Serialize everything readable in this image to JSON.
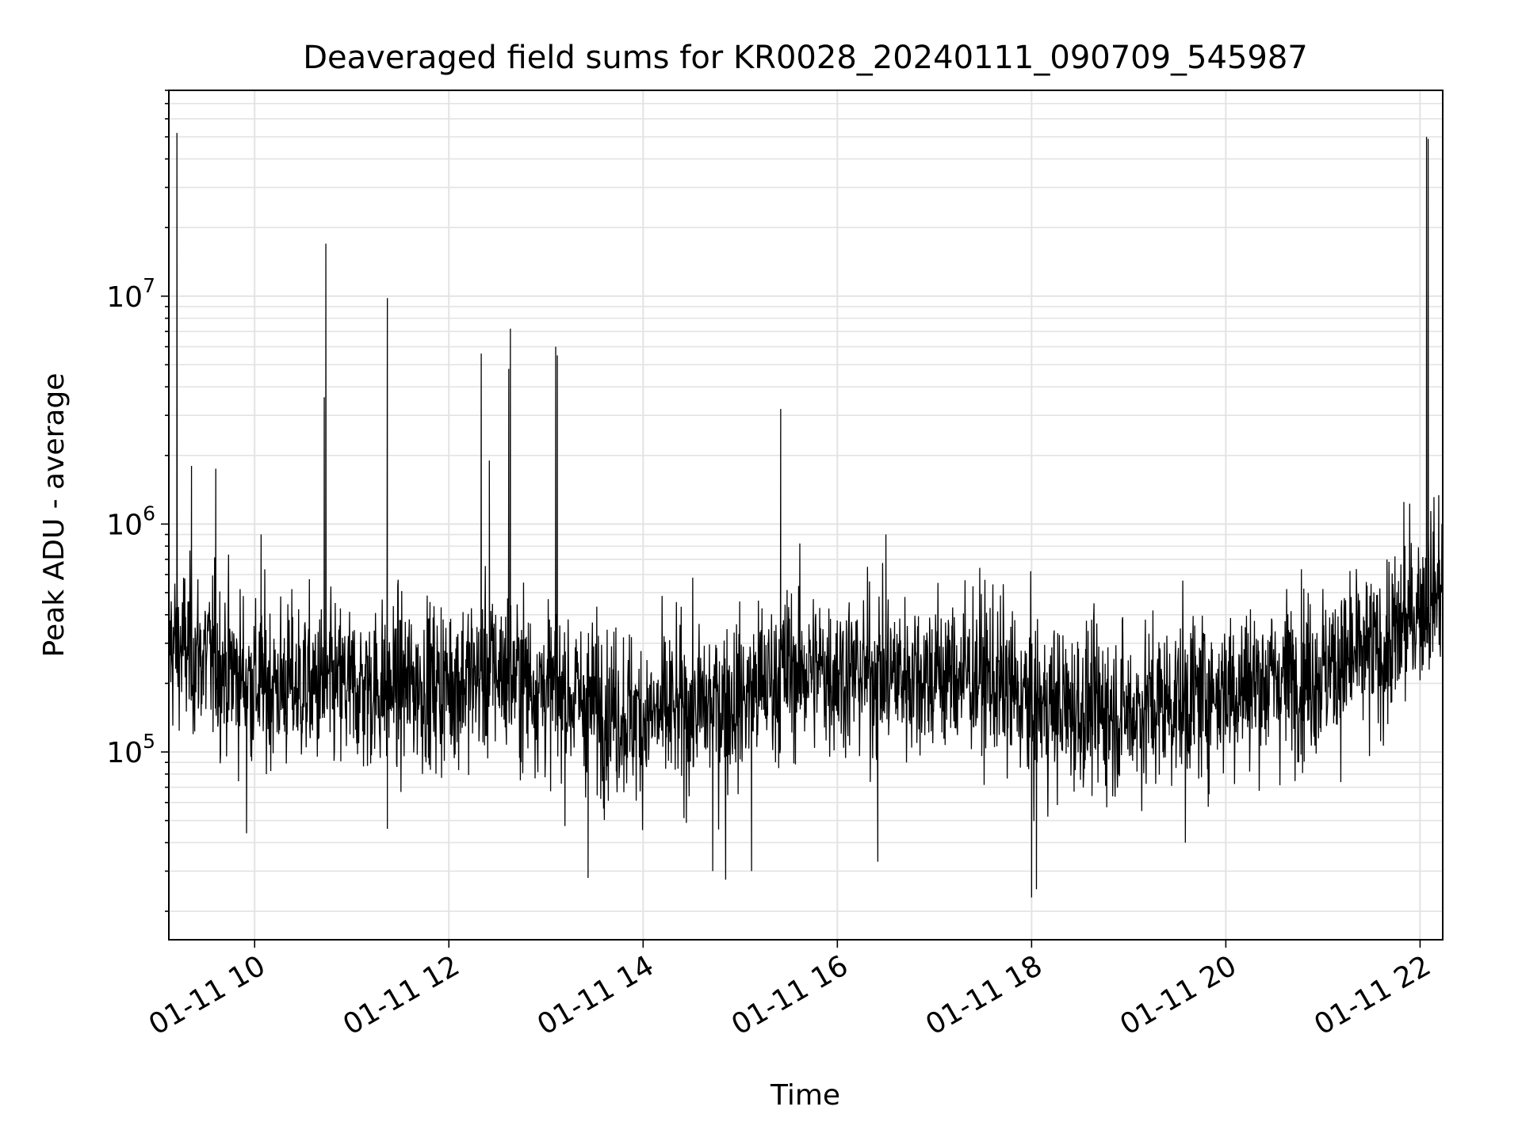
{
  "chart_data": {
    "type": "line",
    "title": "Deaveraged field sums for KR0028_20240111_090709_545987",
    "xlabel": "Time",
    "ylabel": "Peak ADU - average",
    "yscale": "log",
    "grid": true,
    "line_color": "#000000",
    "x_tick_labels": [
      "01-11 10",
      "01-11 12",
      "01-11 14",
      "01-11 16",
      "01-11 18",
      "01-11 20",
      "01-11 22"
    ],
    "y_tick_labels": [
      {
        "base": "10",
        "exp": "5"
      },
      {
        "base": "10",
        "exp": "6"
      },
      {
        "base": "10",
        "exp": "7"
      }
    ],
    "xlim": [
      "2024-01-11 09:07",
      "2024-01-11 22:14"
    ],
    "ylim": [
      15000,
      80000000
    ],
    "baseline": [
      [
        "2024-01-11 09:07",
        300000
      ],
      [
        "2024-01-11 09:30",
        260000
      ],
      [
        "2024-01-11 10:00",
        200000
      ],
      [
        "2024-01-11 11:00",
        190000
      ],
      [
        "2024-01-11 12:00",
        200000
      ],
      [
        "2024-01-11 12:30",
        230000
      ],
      [
        "2024-01-11 13:00",
        190000
      ],
      [
        "2024-01-11 14:00",
        140000
      ],
      [
        "2024-01-11 15:00",
        170000
      ],
      [
        "2024-01-11 15:30",
        230000
      ],
      [
        "2024-01-11 16:30",
        220000
      ],
      [
        "2024-01-11 17:30",
        220000
      ],
      [
        "2024-01-11 18:00",
        160000
      ],
      [
        "2024-01-11 19:00",
        150000
      ],
      [
        "2024-01-11 20:00",
        190000
      ],
      [
        "2024-01-11 21:00",
        230000
      ],
      [
        "2024-01-11 21:40",
        280000
      ],
      [
        "2024-01-11 22:00",
        450000
      ],
      [
        "2024-01-11 22:14",
        550000
      ]
    ],
    "spikes": [
      [
        "2024-01-11 09:12",
        52000000
      ],
      [
        "2024-01-11 09:21",
        1800000
      ],
      [
        "2024-01-11 09:36",
        1750000
      ],
      [
        "2024-01-11 10:04",
        900000
      ],
      [
        "2024-01-11 10:43",
        3600000
      ],
      [
        "2024-01-11 10:44",
        17000000
      ],
      [
        "2024-01-11 11:22",
        9800000
      ],
      [
        "2024-01-11 12:20",
        5600000
      ],
      [
        "2024-01-11 12:25",
        1900000
      ],
      [
        "2024-01-11 12:37",
        4800000
      ],
      [
        "2024-01-11 12:38",
        7200000
      ],
      [
        "2024-01-11 13:06",
        6000000
      ],
      [
        "2024-01-11 13:07",
        5500000
      ],
      [
        "2024-01-11 15:25",
        3200000
      ],
      [
        "2024-01-11 16:30",
        900000
      ],
      [
        "2024-01-11 21:50",
        1250000
      ],
      [
        "2024-01-11 22:04",
        50000000
      ],
      [
        "2024-01-11 22:05",
        49000000
      ]
    ],
    "dips": [
      [
        "2024-01-11 09:55",
        44000
      ],
      [
        "2024-01-11 11:22",
        46000
      ],
      [
        "2024-01-11 13:26",
        28000
      ],
      [
        "2024-01-11 14:43",
        30000
      ],
      [
        "2024-01-11 14:51",
        27500
      ],
      [
        "2024-01-11 15:07",
        30000
      ],
      [
        "2024-01-11 16:25",
        33000
      ],
      [
        "2024-01-11 18:00",
        23000
      ],
      [
        "2024-01-11 18:03",
        25000
      ],
      [
        "2024-01-11 19:35",
        40000
      ]
    ]
  }
}
